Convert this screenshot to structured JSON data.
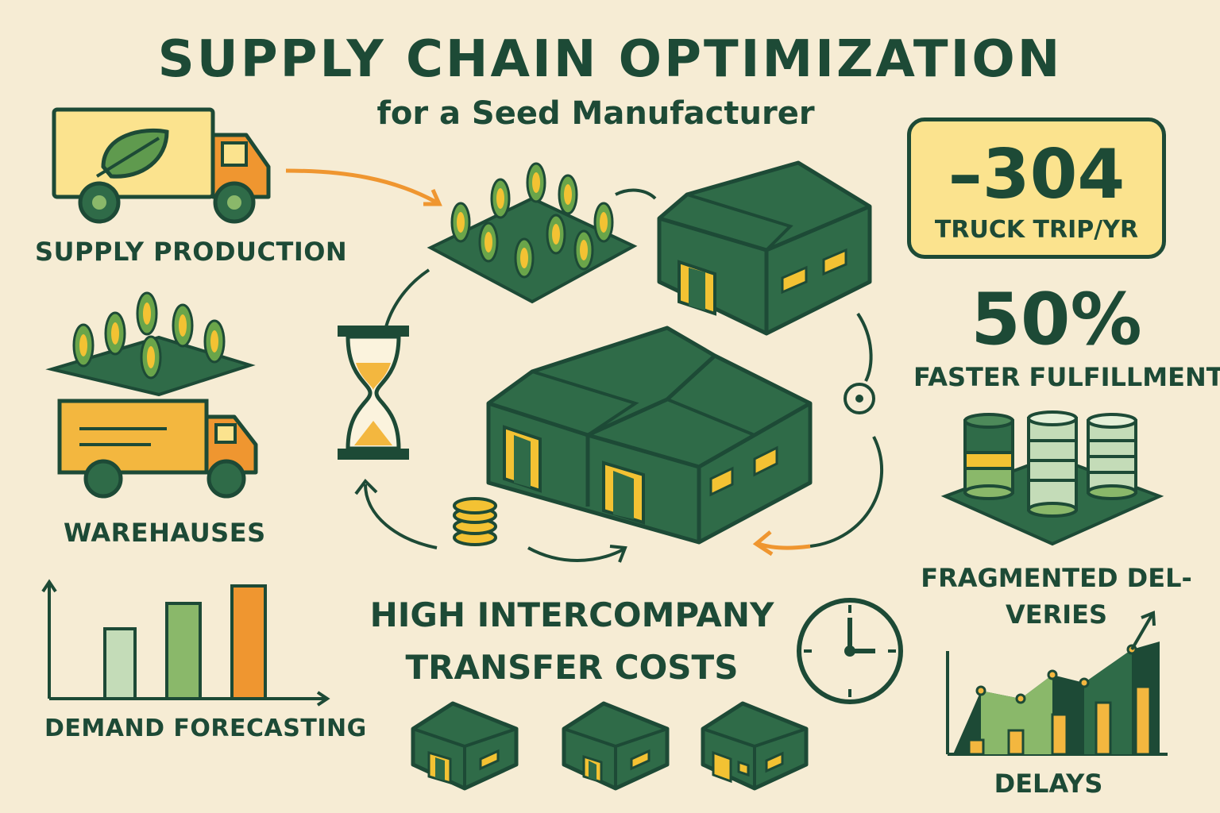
{
  "header": {
    "title": "SUPPLY CHAIN OPTIMIZATION",
    "subtitle": "for a Seed Manufacturer"
  },
  "left_panel": {
    "supply_production": "SUPPLY PRODUCTION",
    "warehauses": "WAREHAUSES",
    "demand_forecasting": "DEMAND FORECASTING"
  },
  "center": {
    "transfer_costs": "HIGH INTERCOMPANY TRANSFER COSTS"
  },
  "right_panel": {
    "stat1_value": "–304",
    "stat1_label": "TRUCK TRIP/YR",
    "stat2_value": "50%",
    "stat2_label": "FASTER FULFILLMENT",
    "fragmented_label": "FRAGMENTED DEL- VERIES",
    "delays_label": "DELAYS"
  },
  "icons": [
    "truck-leaf-icon",
    "cornfield-icon",
    "warehouse-icon",
    "hourglass-icon",
    "coins-icon",
    "clock-icon",
    "bar-chart-icon",
    "database-stacks-icon",
    "rising-chart-icon"
  ],
  "colors": {
    "background": "#f6ecd4",
    "dark_green": "#1d4a36",
    "mid_green": "#2f6b48",
    "accent_orange": "#ef9630",
    "yellow": "#fbe38e",
    "gold": "#f3c233"
  }
}
